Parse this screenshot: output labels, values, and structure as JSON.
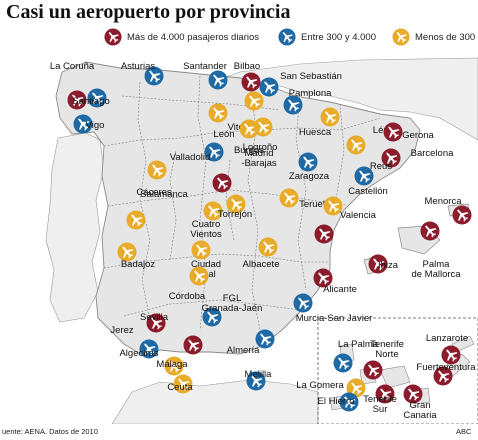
{
  "title": "Casi un aeropuerto por provincia",
  "legend": [
    {
      "label": "Más de 4.000 pasajeros diarios",
      "color": "#8c1c2c",
      "category": "large"
    },
    {
      "label": "Entre 300 y 4.000",
      "color": "#1f6aa5",
      "category": "medium"
    },
    {
      "label": "Menos de 300",
      "color": "#e9ac2a",
      "category": "small"
    }
  ],
  "icon": "airplane-icon",
  "airports": [
    {
      "name": "La Coruña",
      "category": "medium"
    },
    {
      "name": "Santiago",
      "category": "large"
    },
    {
      "name": "Vigo",
      "category": "medium"
    },
    {
      "name": "Asturias",
      "category": "medium"
    },
    {
      "name": "Santander",
      "category": "medium"
    },
    {
      "name": "Bilbao",
      "category": "large"
    },
    {
      "name": "San Sebastián",
      "category": "medium"
    },
    {
      "name": "Vitoria",
      "category": "small"
    },
    {
      "name": "Pamplona",
      "category": "medium"
    },
    {
      "name": "León",
      "category": "small"
    },
    {
      "name": "Burgos",
      "category": "small"
    },
    {
      "name": "Logroño",
      "category": "small"
    },
    {
      "name": "Huesca",
      "category": "small"
    },
    {
      "name": "Lérida",
      "category": "small"
    },
    {
      "name": "Gerona",
      "category": "large"
    },
    {
      "name": "Barcelona",
      "category": "large"
    },
    {
      "name": "Reus",
      "category": "medium"
    },
    {
      "name": "Valladolid",
      "category": "medium"
    },
    {
      "name": "Salamanca",
      "category": "small"
    },
    {
      "name": "Madrid -Barajas",
      "category": "large"
    },
    {
      "name": "Zaragoza",
      "category": "medium"
    },
    {
      "name": "Teruel",
      "category": "small"
    },
    {
      "name": "Castellón",
      "category": "small"
    },
    {
      "name": "Cáceres",
      "category": "small"
    },
    {
      "name": "Cuatro Vientos",
      "category": "small"
    },
    {
      "name": "Torrejón",
      "category": "small"
    },
    {
      "name": "Valencia",
      "category": "large"
    },
    {
      "name": "Menorca",
      "category": "large"
    },
    {
      "name": "Palma de Mallorca",
      "category": "large"
    },
    {
      "name": "Ibiza",
      "category": "large"
    },
    {
      "name": "Badajoz",
      "category": "small"
    },
    {
      "name": "Ciudad Real",
      "category": "small"
    },
    {
      "name": "Albacete",
      "category": "small"
    },
    {
      "name": "Alicante",
      "category": "large"
    },
    {
      "name": "Córdoba",
      "category": "small"
    },
    {
      "name": "Sevilla",
      "category": "large"
    },
    {
      "name": "FGL Granada-Jaén",
      "category": "medium"
    },
    {
      "name": "Murcia-San Javier",
      "category": "medium"
    },
    {
      "name": "Jerez",
      "category": "medium"
    },
    {
      "name": "Algeciras",
      "category": "small"
    },
    {
      "name": "Málaga",
      "category": "large"
    },
    {
      "name": "Almería",
      "category": "medium"
    },
    {
      "name": "Ceuta",
      "category": "small"
    },
    {
      "name": "Melilla",
      "category": "medium"
    },
    {
      "name": "La Palma",
      "category": "medium"
    },
    {
      "name": "Lanzarote",
      "category": "large"
    },
    {
      "name": "Tenerife Norte",
      "category": "large"
    },
    {
      "name": "Fuerteventura",
      "category": "large"
    },
    {
      "name": "La Gomera",
      "category": "small"
    },
    {
      "name": "El Hierro",
      "category": "medium"
    },
    {
      "name": "Tenerife Sur",
      "category": "large"
    },
    {
      "name": "Gran Canaria",
      "category": "large"
    }
  ],
  "footer": {
    "source": "uente: AENA. Datos de 2010",
    "credit": "ABC"
  }
}
